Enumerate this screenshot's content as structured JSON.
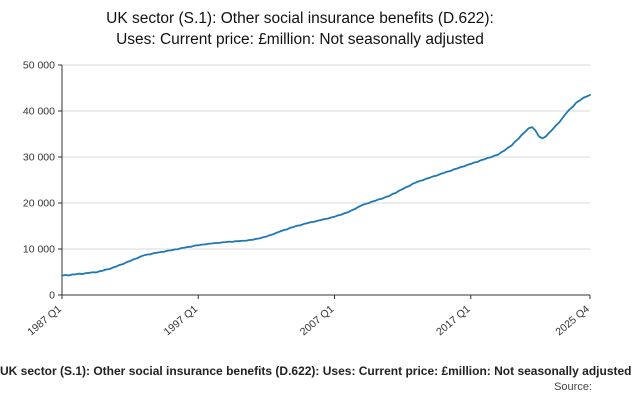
{
  "page": {
    "title_line1": "UK sector (S.1): Other social insurance benefits (D.622):",
    "title_line2": "Uses: Current price: £million: Not seasonally adjusted",
    "footer_title": "UK sector (S.1): Other social insurance benefits (D.622): Uses: Current price: £million: Not seasonally adjusted",
    "source_label": "Source:"
  },
  "chart_data": {
    "type": "line",
    "title": "UK sector (S.1): Other social insurance benefits (D.622): Uses: Current price: £million: Not seasonally adjusted",
    "xlabel": "",
    "ylabel": "",
    "ylim": [
      0,
      50000
    ],
    "y_ticks": [
      0,
      10000,
      20000,
      30000,
      40000,
      50000
    ],
    "y_tick_labels": [
      "0",
      "10 000",
      "20 000",
      "30 000",
      "40 000",
      "50 000"
    ],
    "x_tick_labels": [
      "1987 Q1",
      "1997 Q1",
      "2007 Q1",
      "2017 Q1",
      "2025 Q4"
    ],
    "x_tick_indices": [
      0,
      40,
      80,
      120,
      155
    ],
    "grid": true,
    "legend": "none",
    "line_color": "#1f77b4",
    "grid_color": "#d9d9d9",
    "axis_color": "#333333",
    "series": [
      {
        "name": "Other social insurance benefits (D.622), £million, not seasonally adjusted",
        "start": "1987 Q1",
        "end": "2025 Q4",
        "frequency": "quarterly",
        "values": [
          4200,
          4350,
          4250,
          4450,
          4500,
          4650,
          4550,
          4750,
          4800,
          4950,
          4900,
          5150,
          5300,
          5550,
          5650,
          6000,
          6200,
          6550,
          6750,
          7150,
          7400,
          7750,
          7950,
          8350,
          8600,
          8800,
          8850,
          9100,
          9200,
          9350,
          9400,
          9650,
          9700,
          9900,
          9950,
          10200,
          10300,
          10450,
          10500,
          10750,
          10800,
          10950,
          11000,
          11150,
          11200,
          11300,
          11300,
          11450,
          11500,
          11600,
          11550,
          11700,
          11700,
          11800,
          11800,
          11950,
          12000,
          12200,
          12300,
          12550,
          12700,
          13000,
          13200,
          13550,
          13800,
          14100,
          14250,
          14600,
          14800,
          15050,
          15150,
          15450,
          15600,
          15850,
          15900,
          16150,
          16300,
          16500,
          16600,
          16850,
          17000,
          17300,
          17450,
          17800,
          18000,
          18400,
          18700,
          19150,
          19500,
          19800,
          19950,
          20300,
          20500,
          20800,
          20950,
          21300,
          21500,
          21950,
          22200,
          22700,
          23000,
          23450,
          23700,
          24200,
          24500,
          24800,
          24950,
          25300,
          25500,
          25800,
          25950,
          26300,
          26500,
          26800,
          26950,
          27300,
          27500,
          27800,
          27950,
          28300,
          28500,
          28800,
          28950,
          29300,
          29500,
          29800,
          29950,
          30300,
          30500,
          31050,
          31450,
          32050,
          32500,
          33350,
          33950,
          34850,
          35500,
          36250,
          36500,
          35750,
          34500,
          34050,
          34450,
          35250,
          36000,
          36850,
          37550,
          38550,
          39500,
          40350,
          40950,
          41850,
          42300,
          42850,
          43150,
          43500
        ]
      }
    ]
  }
}
